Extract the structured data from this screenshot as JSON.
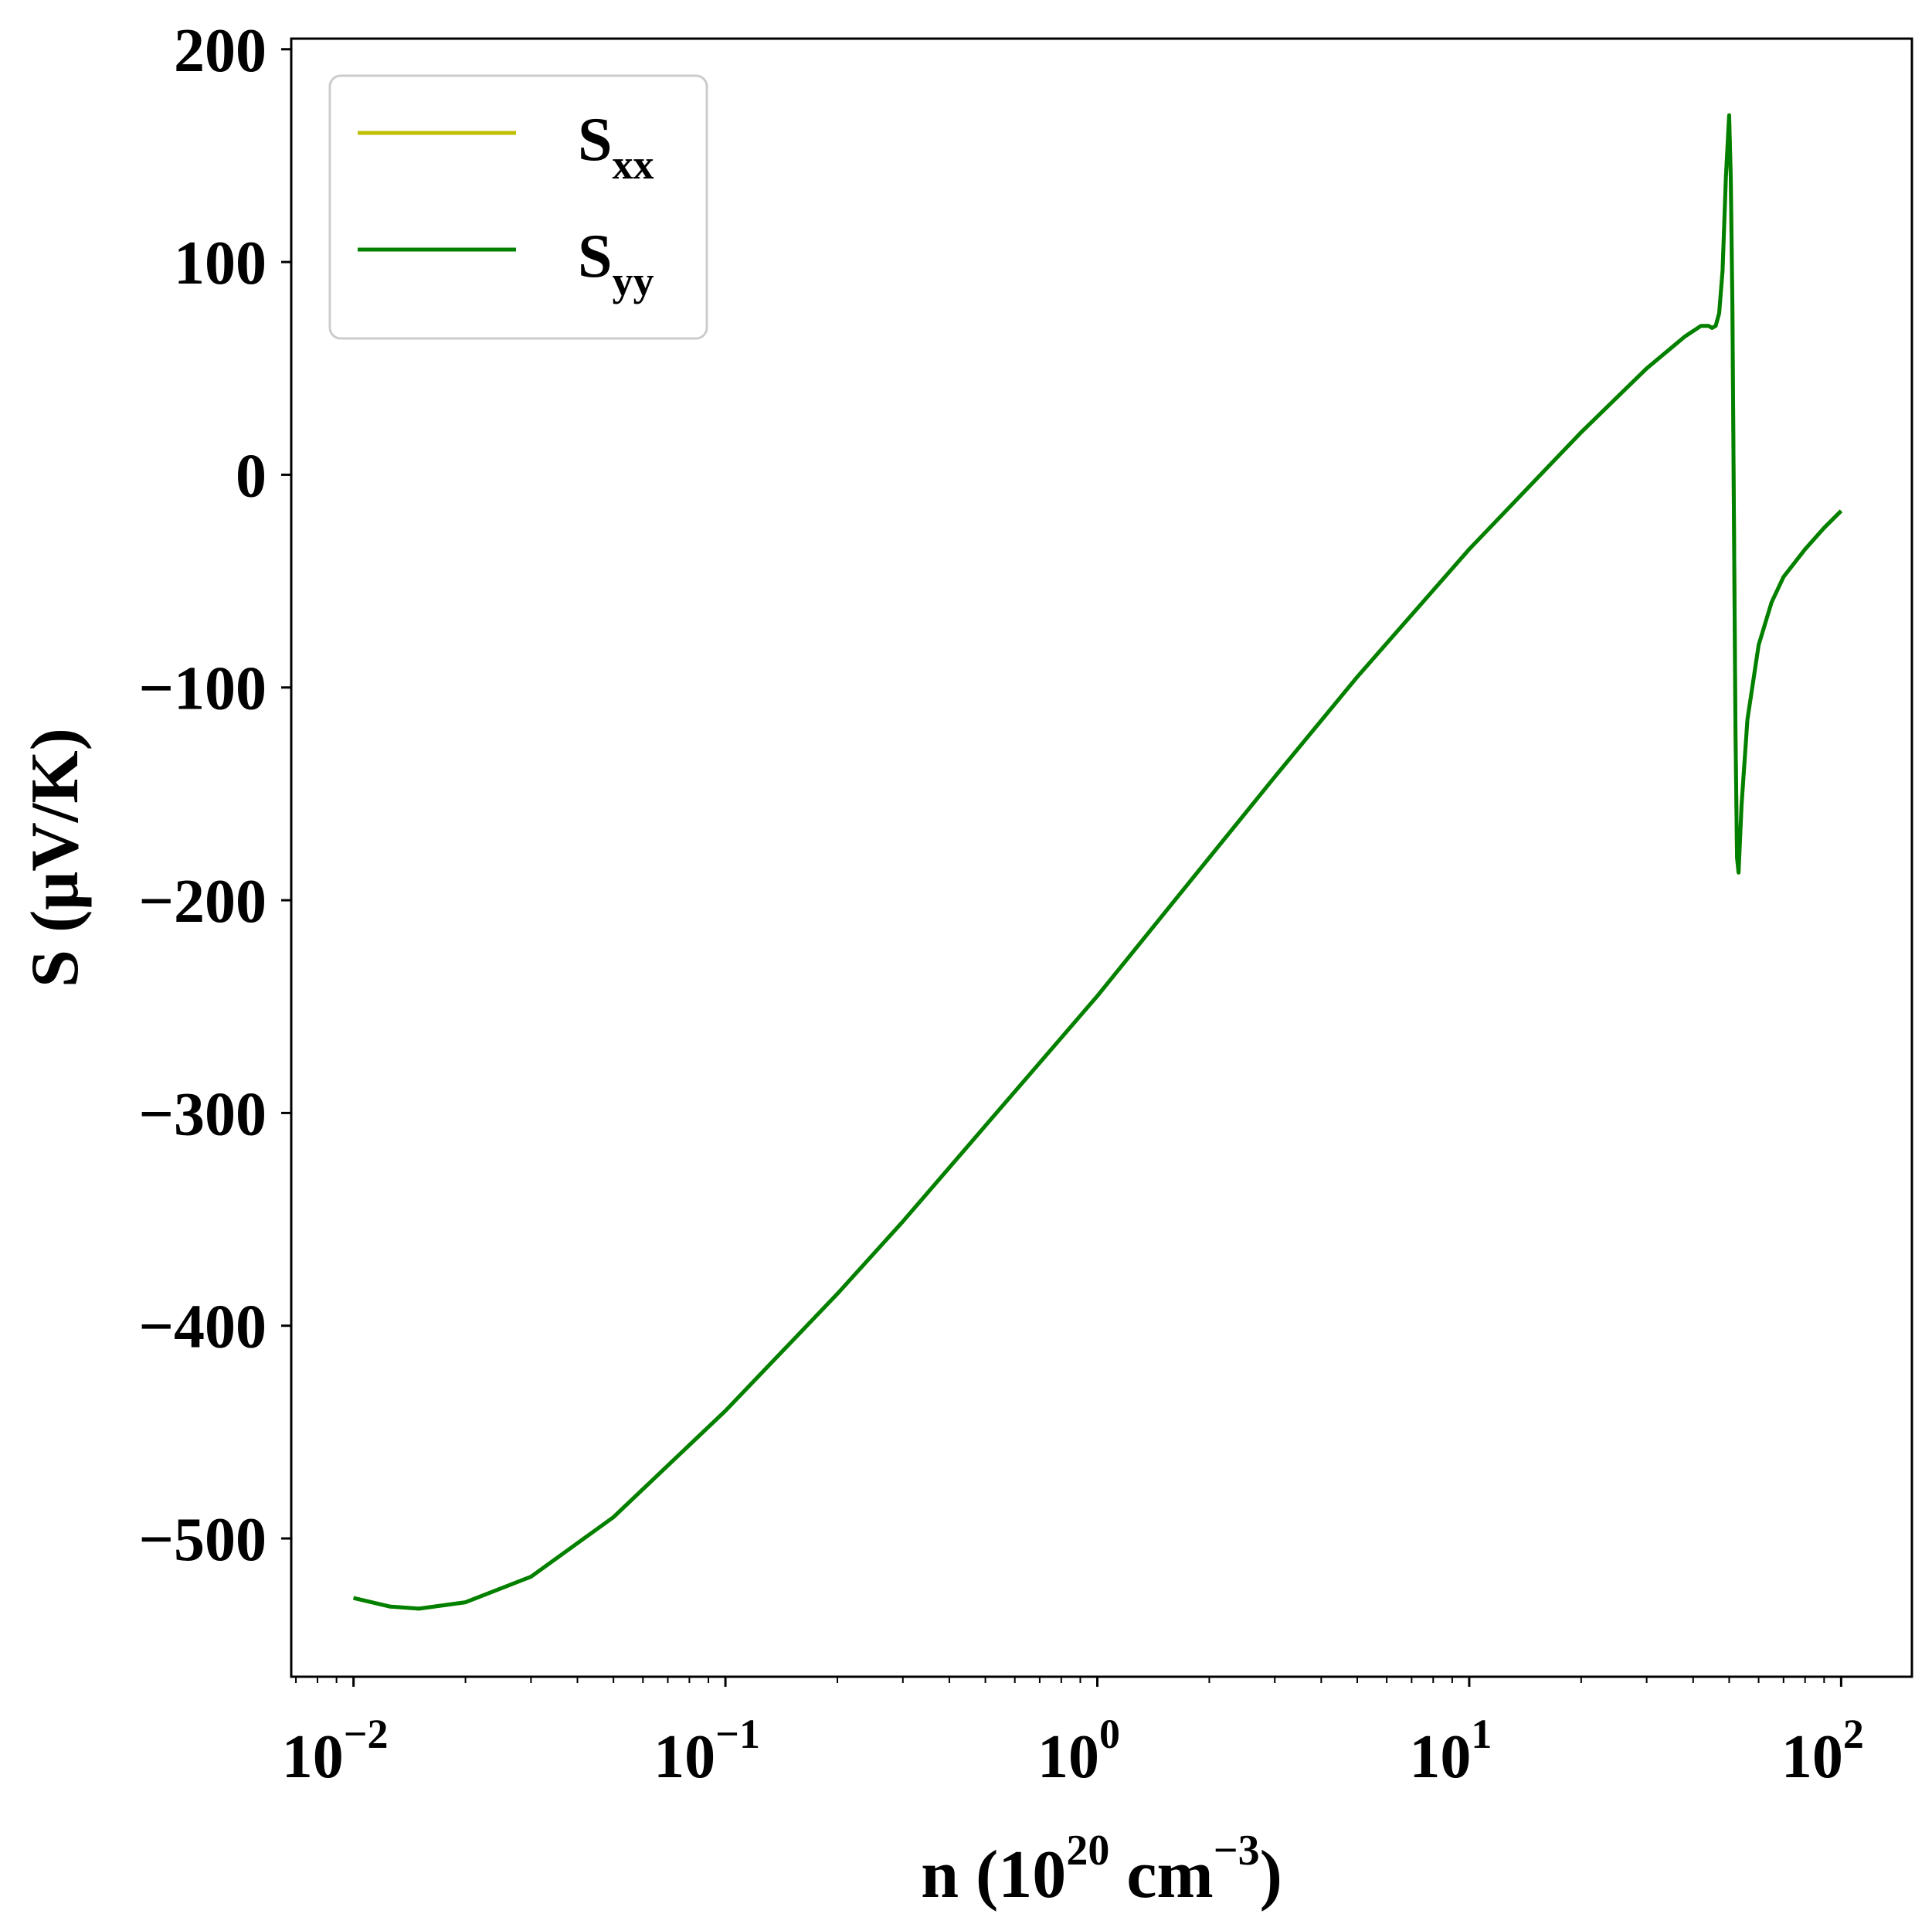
{
  "chart_data": {
    "type": "line",
    "xlabel": {
      "prefix": "n (10",
      "sup1": "20",
      "mid": " cm",
      "sup2": "−3",
      "suffix": ")"
    },
    "ylabel": "S (μV/K)",
    "xscale": "log",
    "xlim": [
      0.0068,
      155
    ],
    "ylim": [
      -565,
      205
    ],
    "yticks": [
      {
        "value": 200,
        "label": "200"
      },
      {
        "value": 100,
        "label": "100"
      },
      {
        "value": 0,
        "label": "0"
      },
      {
        "value": -100,
        "label": "−100"
      },
      {
        "value": -200,
        "label": "−200"
      },
      {
        "value": -300,
        "label": "−300"
      },
      {
        "value": -400,
        "label": "−400"
      },
      {
        "value": -500,
        "label": "−500"
      }
    ],
    "xticks": [
      {
        "value": 0.01,
        "base": "10",
        "exp": "−2"
      },
      {
        "value": 0.1,
        "base": "10",
        "exp": "−1"
      },
      {
        "value": 1,
        "base": "10",
        "exp": "0"
      },
      {
        "value": 10,
        "base": "10",
        "exp": "1"
      },
      {
        "value": 100,
        "base": "10",
        "exp": "2"
      }
    ],
    "grid": false,
    "legend_position": "top-left",
    "series": [
      {
        "name": "S",
        "sub": "xx",
        "color": "#bfbf00",
        "x": [
          0.01,
          0.0125,
          0.015,
          0.02,
          0.03,
          0.05,
          0.1,
          0.2,
          0.3,
          0.5,
          1,
          2,
          3,
          5,
          10,
          20,
          30,
          38,
          42,
          44,
          45,
          46,
          47,
          48,
          49,
          50,
          50.5,
          51,
          51.5,
          52,
          52.5,
          53,
          54,
          56,
          60,
          65,
          70,
          80,
          90,
          100
        ],
        "y": [
          -528,
          -532,
          -533,
          -530,
          -518,
          -490,
          -440,
          -385,
          -351,
          -306,
          -245,
          -180,
          -142,
          -95,
          -35,
          20,
          50,
          65,
          70,
          70,
          69,
          70,
          76,
          96,
          140,
          169,
          140,
          80,
          -20,
          -120,
          -180,
          -187,
          -155,
          -115,
          -80,
          -60,
          -48,
          -35,
          -25,
          -17
        ]
      },
      {
        "name": "S",
        "sub": "yy",
        "color": "#008000",
        "x": [
          0.01,
          0.0125,
          0.015,
          0.02,
          0.03,
          0.05,
          0.1,
          0.2,
          0.3,
          0.5,
          1,
          2,
          3,
          5,
          10,
          20,
          30,
          38,
          42,
          44,
          45,
          46,
          47,
          48,
          49,
          50,
          50.5,
          51,
          51.5,
          52,
          52.5,
          53,
          54,
          56,
          60,
          65,
          70,
          80,
          90,
          100
        ],
        "y": [
          -528,
          -532,
          -533,
          -530,
          -518,
          -490,
          -440,
          -385,
          -351,
          -306,
          -245,
          -180,
          -142,
          -95,
          -35,
          20,
          50,
          65,
          70,
          70,
          69,
          70,
          76,
          96,
          140,
          169,
          140,
          80,
          -20,
          -120,
          -180,
          -187,
          -155,
          -115,
          -80,
          -60,
          -48,
          -35,
          -25,
          -17
        ]
      }
    ]
  }
}
